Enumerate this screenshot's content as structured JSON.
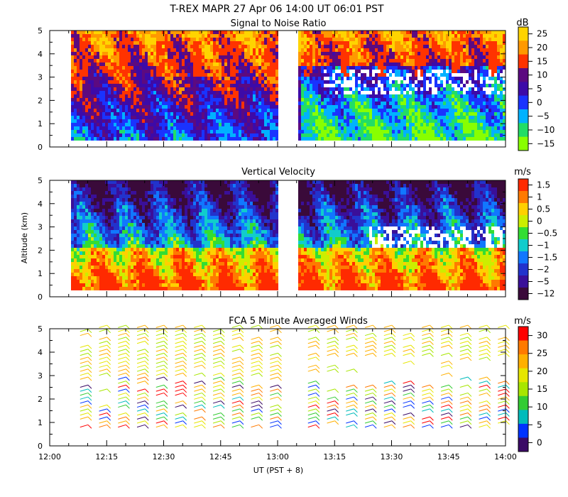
{
  "header": {
    "title": "T-REX  MAPR 27 Apr 06  14:00 UT  06:01  PST"
  },
  "shared_axes": {
    "ylabel": "Altitude (km)",
    "xlabel": "UT  (PST + 8)",
    "x_ticks": [
      "12:00",
      "12:15",
      "12:30",
      "12:45",
      "13:00",
      "13:15",
      "13:30",
      "13:45",
      "14:00"
    ],
    "y_ticks": [
      "0",
      "1",
      "2",
      "3",
      "4",
      "5"
    ]
  },
  "chart_data": [
    {
      "type": "heatmap",
      "title": "Signal to Noise Ratio",
      "xlabel": "UT  (PST + 8)",
      "ylabel": "Altitude (km)",
      "xlim": [
        "12:00",
        "14:00"
      ],
      "ylim": [
        0,
        5
      ],
      "data_gap": [
        "13:00",
        "13:05"
      ],
      "colorbar": {
        "unit": "dB",
        "tick_labels": [
          "25",
          "20",
          "15",
          "10",
          "5",
          "0",
          "−5",
          "−10",
          "−15"
        ],
        "colors": [
          "#ffd400",
          "#ff9900",
          "#ff3300",
          "#5c0a80",
          "#3d0aa8",
          "#1a33ff",
          "#00b2ff",
          "#22dd66",
          "#88ff00"
        ]
      }
    },
    {
      "type": "heatmap",
      "title": "Vertical Velocity",
      "xlabel": "UT  (PST + 8)",
      "ylabel": "Altitude (km)",
      "xlim": [
        "12:00",
        "14:00"
      ],
      "ylim": [
        0,
        5
      ],
      "data_gap": [
        "13:00",
        "13:05"
      ],
      "colorbar": {
        "unit": "m/s",
        "tick_labels": [
          "1.5",
          "1",
          "0.5",
          "0",
          "−0.5",
          "−1",
          "−1.5",
          "−2",
          "−5",
          "−12"
        ],
        "colors": [
          "#ff2a00",
          "#ff7a00",
          "#ffd000",
          "#ccee00",
          "#33dd33",
          "#11cccc",
          "#1177ff",
          "#2233cc",
          "#3a0f99",
          "#3a0a3a"
        ]
      }
    },
    {
      "type": "scatter",
      "title": "FCA 5 Minute Averaged Winds",
      "xlabel": "UT  (PST + 8)",
      "ylabel": "Altitude (km)",
      "xlim": [
        "12:00",
        "14:00"
      ],
      "ylim": [
        0,
        5
      ],
      "marker": "wind-barb",
      "colorbar": {
        "unit": "m/s",
        "tick_labels": [
          "30",
          "25",
          "20",
          "15",
          "10",
          "5",
          "0"
        ],
        "colors": [
          "#ff0000",
          "#ff7a00",
          "#ffb000",
          "#e6e600",
          "#a8e600",
          "#33cc33",
          "#00bbbb",
          "#0033ff",
          "#3b0a66"
        ]
      }
    }
  ]
}
